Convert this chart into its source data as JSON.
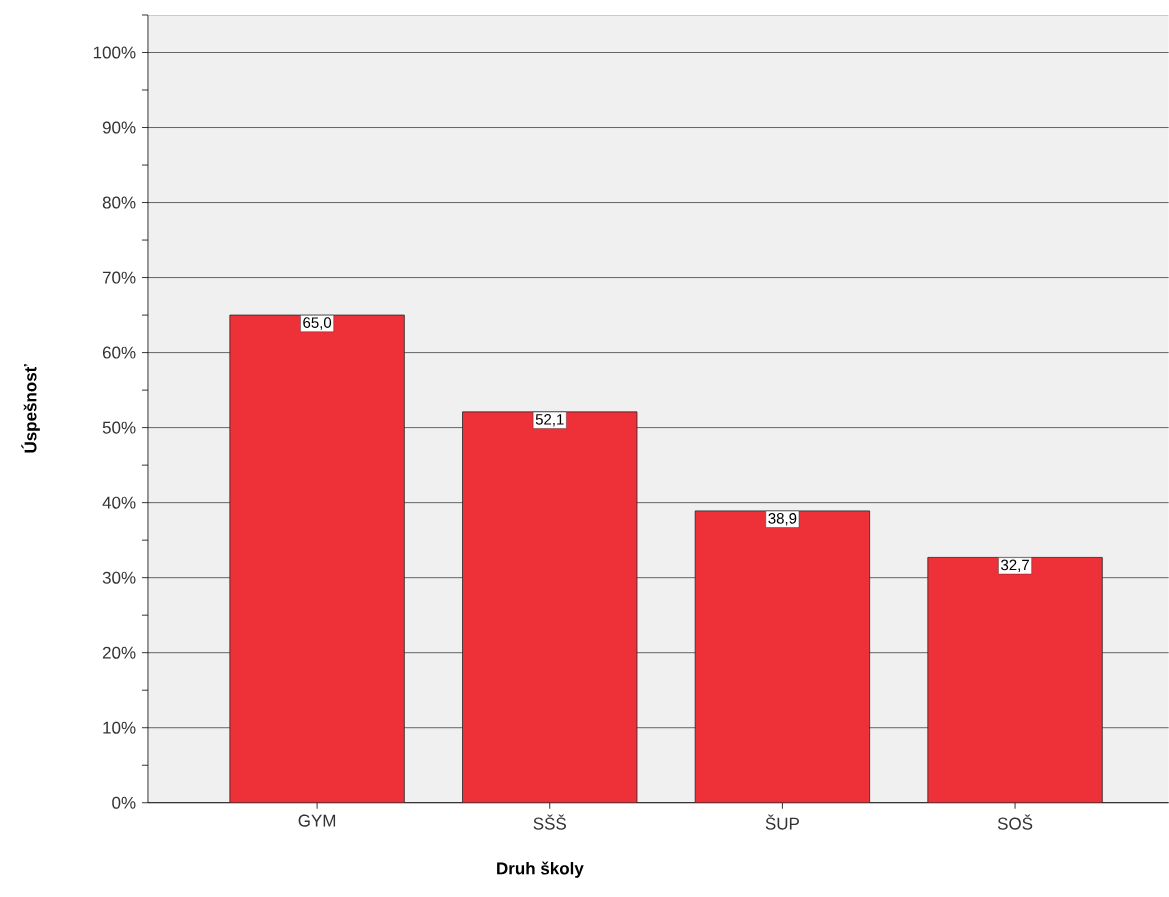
{
  "chart_data": {
    "type": "bar",
    "xlabel": "Druh školy",
    "ylabel": "Úspešnosť",
    "categories": [
      "GYM",
      "SŠŠ",
      "ŠUP",
      "SOŠ"
    ],
    "values": [
      65.0,
      52.1,
      38.9,
      32.7
    ],
    "value_labels": [
      "65,0",
      "52,1",
      "38,9",
      "32,7"
    ],
    "color": "#ee3039",
    "ylim": [
      0,
      105
    ],
    "yticks": [
      {
        "value": 0,
        "label": "0%"
      },
      {
        "value": 5,
        "label": null
      },
      {
        "value": 10,
        "label": "10%"
      },
      {
        "value": 15,
        "label": null
      },
      {
        "value": 20,
        "label": "20%"
      },
      {
        "value": 25,
        "label": null
      },
      {
        "value": 30,
        "label": "30%"
      },
      {
        "value": 35,
        "label": null
      },
      {
        "value": 40,
        "label": "40%"
      },
      {
        "value": 45,
        "label": null
      },
      {
        "value": 50,
        "label": "50%"
      },
      {
        "value": 55,
        "label": null
      },
      {
        "value": 60,
        "label": "60%"
      },
      {
        "value": 65,
        "label": null
      },
      {
        "value": 70,
        "label": "70%"
      },
      {
        "value": 75,
        "label": null
      },
      {
        "value": 80,
        "label": "80%"
      },
      {
        "value": 85,
        "label": null
      },
      {
        "value": 90,
        "label": "90%"
      },
      {
        "value": 95,
        "label": null
      },
      {
        "value": 100,
        "label": "100%"
      },
      {
        "value": 105,
        "label": null
      }
    ],
    "grid": "y"
  }
}
